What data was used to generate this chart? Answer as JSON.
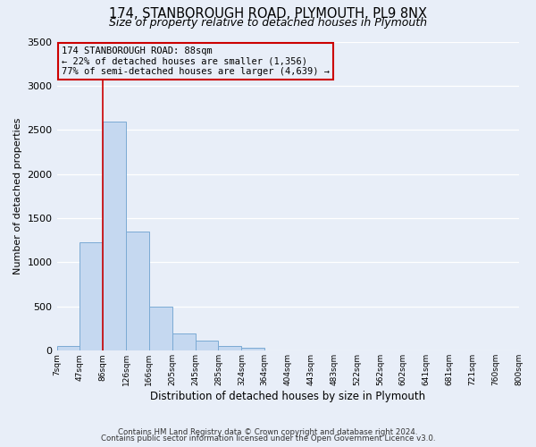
{
  "title": "174, STANBOROUGH ROAD, PLYMOUTH, PL9 8NX",
  "subtitle": "Size of property relative to detached houses in Plymouth",
  "xlabel": "Distribution of detached houses by size in Plymouth",
  "ylabel": "Number of detached properties",
  "footnote1": "Contains HM Land Registry data © Crown copyright and database right 2024.",
  "footnote2": "Contains public sector information licensed under the Open Government Licence v3.0.",
  "bin_labels": [
    "7sqm",
    "47sqm",
    "86sqm",
    "126sqm",
    "166sqm",
    "205sqm",
    "245sqm",
    "285sqm",
    "324sqm",
    "364sqm",
    "404sqm",
    "443sqm",
    "483sqm",
    "522sqm",
    "562sqm",
    "602sqm",
    "641sqm",
    "681sqm",
    "721sqm",
    "760sqm",
    "800sqm"
  ],
  "bar_heights": [
    50,
    1230,
    2590,
    1350,
    500,
    200,
    110,
    50,
    30,
    0,
    0,
    0,
    0,
    0,
    0,
    0,
    0,
    0,
    0,
    0
  ],
  "bar_color": "#c5d8f0",
  "bar_edge_color": "#7baad4",
  "vline_x": 2,
  "vline_color": "#cc0000",
  "annotation_title": "174 STANBOROUGH ROAD: 88sqm",
  "annotation_line1": "← 22% of detached houses are smaller (1,356)",
  "annotation_line2": "77% of semi-detached houses are larger (4,639) →",
  "annotation_box_color": "#cc0000",
  "ylim": [
    0,
    3500
  ],
  "yticks": [
    0,
    500,
    1000,
    1500,
    2000,
    2500,
    3000,
    3500
  ],
  "background_color": "#e8eef8",
  "grid_color": "#ffffff",
  "title_fontsize": 10.5,
  "subtitle_fontsize": 9
}
